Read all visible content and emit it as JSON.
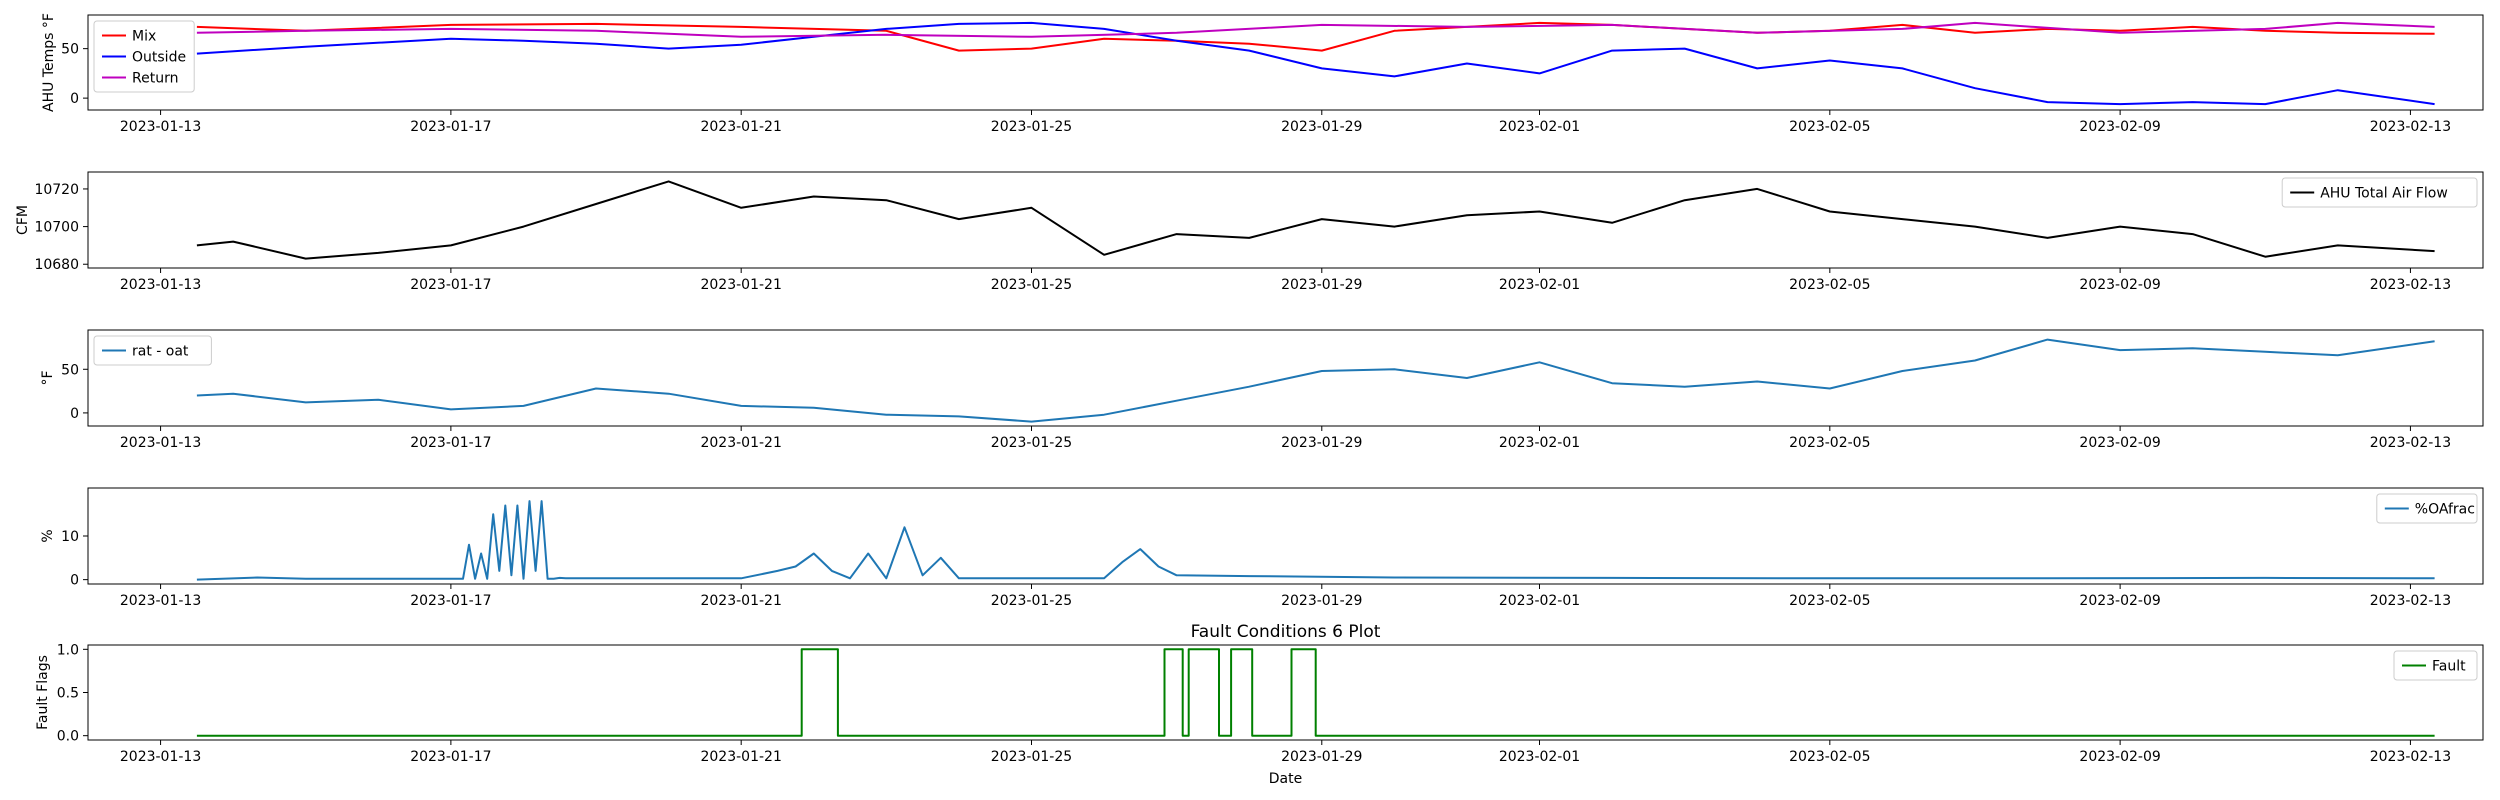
{
  "chart_data": [
    {
      "type": "line",
      "ylabel": "AHU Temps °F",
      "ylim": [
        -12,
        84
      ],
      "yticks": [
        0,
        50
      ],
      "legend": "upper-left",
      "series": [
        {
          "name": "Mix",
          "color": "#ff0000",
          "x": [
            "2023-01-13 12:00",
            "2023-01-15",
            "2023-01-17",
            "2023-01-19",
            "2023-01-21",
            "2023-01-23",
            "2023-01-24",
            "2023-01-25",
            "2023-01-26",
            "2023-01-27",
            "2023-01-28",
            "2023-01-29",
            "2023-01-30",
            "2023-02-01",
            "2023-02-02",
            "2023-02-03",
            "2023-02-04",
            "2023-02-05",
            "2023-02-06",
            "2023-02-07",
            "2023-02-08",
            "2023-02-09",
            "2023-02-10",
            "2023-02-11",
            "2023-02-12",
            "2023-02-13 08:00"
          ],
          "y": [
            72,
            68,
            74,
            75,
            72,
            68,
            48,
            50,
            60,
            58,
            55,
            48,
            68,
            76,
            74,
            70,
            66,
            68,
            74,
            66,
            70,
            68,
            72,
            68,
            66,
            65
          ]
        },
        {
          "name": "Outside",
          "color": "#0000ff",
          "x": [
            "2023-01-13 12:00",
            "2023-01-15",
            "2023-01-17",
            "2023-01-18",
            "2023-01-19",
            "2023-01-20",
            "2023-01-21",
            "2023-01-22",
            "2023-01-23",
            "2023-01-24",
            "2023-01-25",
            "2023-01-26",
            "2023-01-27",
            "2023-01-28",
            "2023-01-29",
            "2023-01-30",
            "2023-01-31",
            "2023-02-01",
            "2023-02-02",
            "2023-02-03",
            "2023-02-04",
            "2023-02-05",
            "2023-02-06",
            "2023-02-07",
            "2023-02-08",
            "2023-02-09",
            "2023-02-10",
            "2023-02-11",
            "2023-02-12",
            "2023-02-13 08:00"
          ],
          "y": [
            45,
            52,
            60,
            58,
            55,
            50,
            54,
            62,
            70,
            75,
            76,
            70,
            58,
            48,
            30,
            22,
            35,
            25,
            48,
            50,
            30,
            38,
            30,
            10,
            -4,
            -6,
            -4,
            -6,
            8,
            -6
          ]
        },
        {
          "name": "Return",
          "color": "#bf00bf",
          "x": [
            "2023-01-13 12:00",
            "2023-01-15",
            "2023-01-17",
            "2023-01-19",
            "2023-01-21",
            "2023-01-23",
            "2023-01-25",
            "2023-01-27",
            "2023-01-29",
            "2023-01-31",
            "2023-02-02",
            "2023-02-04",
            "2023-02-06",
            "2023-02-07",
            "2023-02-09",
            "2023-02-11",
            "2023-02-12",
            "2023-02-13 08:00"
          ],
          "y": [
            66,
            68,
            70,
            68,
            62,
            64,
            62,
            66,
            74,
            72,
            74,
            66,
            70,
            76,
            66,
            70,
            76,
            72
          ]
        }
      ]
    },
    {
      "type": "line",
      "ylabel": "CFM",
      "ylim": [
        10678,
        10729
      ],
      "yticks": [
        10680,
        10700,
        10720
      ],
      "legend": "upper-right",
      "series": [
        {
          "name": "AHU Total Air Flow",
          "color": "#000000",
          "x": [
            "2023-01-13 12:00",
            "2023-01-14",
            "2023-01-15",
            "2023-01-16",
            "2023-01-17",
            "2023-01-18",
            "2023-01-19",
            "2023-01-20",
            "2023-01-21",
            "2023-01-22",
            "2023-01-23",
            "2023-01-24",
            "2023-01-25",
            "2023-01-26",
            "2023-01-27",
            "2023-01-28",
            "2023-01-29",
            "2023-01-30",
            "2023-01-31",
            "2023-02-01",
            "2023-02-02",
            "2023-02-03",
            "2023-02-04",
            "2023-02-05",
            "2023-02-06",
            "2023-02-07",
            "2023-02-08",
            "2023-02-09",
            "2023-02-10",
            "2023-02-11",
            "2023-02-12",
            "2023-02-13 08:00"
          ],
          "y": [
            10690,
            10692,
            10683,
            10686,
            10690,
            10700,
            10712,
            10724,
            10710,
            10716,
            10714,
            10704,
            10710,
            10685,
            10696,
            10694,
            10704,
            10700,
            10706,
            10708,
            10702,
            10714,
            10720,
            10708,
            10704,
            10700,
            10694,
            10700,
            10696,
            10684,
            10690,
            10687
          ]
        }
      ]
    },
    {
      "type": "line",
      "ylabel": "°F",
      "ylim": [
        -15,
        95
      ],
      "yticks": [
        0,
        50
      ],
      "legend": "upper-left",
      "series": [
        {
          "name": "rat - oat",
          "color": "#1f77b4",
          "x": [
            "2023-01-13 12:00",
            "2023-01-14",
            "2023-01-15",
            "2023-01-16",
            "2023-01-17",
            "2023-01-18",
            "2023-01-19",
            "2023-01-20",
            "2023-01-21",
            "2023-01-22",
            "2023-01-23",
            "2023-01-24",
            "2023-01-25",
            "2023-01-26",
            "2023-01-27",
            "2023-01-28",
            "2023-01-29",
            "2023-01-30",
            "2023-01-31",
            "2023-02-01",
            "2023-02-02",
            "2023-02-03",
            "2023-02-04",
            "2023-02-05",
            "2023-02-06",
            "2023-02-07",
            "2023-02-08",
            "2023-02-09",
            "2023-02-10",
            "2023-02-11",
            "2023-02-12",
            "2023-02-13 08:00"
          ],
          "y": [
            20,
            22,
            12,
            15,
            4,
            8,
            28,
            22,
            8,
            6,
            -2,
            -4,
            -10,
            -2,
            14,
            30,
            48,
            50,
            40,
            58,
            34,
            30,
            36,
            28,
            48,
            60,
            84,
            72,
            74,
            70,
            66,
            82
          ]
        }
      ]
    },
    {
      "type": "line",
      "ylabel": "%",
      "ylim": [
        -1,
        21
      ],
      "yticks": [
        0,
        10
      ],
      "legend": "upper-right",
      "series": [
        {
          "name": "%OAfrac",
          "color": "#1f77b4",
          "x": [
            "2023-01-13 12:00",
            "2023-01-14 08:00",
            "2023-01-15",
            "2023-01-16",
            "2023-01-17 04:00",
            "2023-01-17 06:00",
            "2023-01-17 08:00",
            "2023-01-17 10:00",
            "2023-01-17 12:00",
            "2023-01-17 14:00",
            "2023-01-17 16:00",
            "2023-01-17 18:00",
            "2023-01-17 20:00",
            "2023-01-17 22:00",
            "2023-01-18 00:00",
            "2023-01-18 02:00",
            "2023-01-18 04:00",
            "2023-01-18 06:00",
            "2023-01-18 08:00",
            "2023-01-18 10:00",
            "2023-01-18 12:00",
            "2023-01-18 14:00",
            "2023-01-19",
            "2023-01-21",
            "2023-01-21 12:00",
            "2023-01-21 18:00",
            "2023-01-22",
            "2023-01-22 06:00",
            "2023-01-22 12:00",
            "2023-01-22 18:00",
            "2023-01-23",
            "2023-01-23 06:00",
            "2023-01-23 12:00",
            "2023-01-23 18:00",
            "2023-01-24",
            "2023-01-25",
            "2023-01-26 00:00",
            "2023-01-26 06:00",
            "2023-01-26 12:00",
            "2023-01-26 18:00",
            "2023-01-27",
            "2023-01-28",
            "2023-01-30",
            "2023-02-02",
            "2023-02-05",
            "2023-02-08",
            "2023-02-11",
            "2023-02-13 08:00"
          ],
          "y": [
            0,
            0.5,
            0.2,
            0.2,
            0.2,
            8,
            0.2,
            6,
            0.2,
            15,
            2,
            17,
            1,
            17,
            0.2,
            18,
            2,
            18,
            0.2,
            0.2,
            0.4,
            0.3,
            0.3,
            0.3,
            2,
            3,
            6,
            2,
            0.3,
            6,
            0.3,
            12,
            1,
            5,
            0.3,
            0.3,
            0.3,
            4,
            7,
            3,
            1,
            0.8,
            0.5,
            0.4,
            0.3,
            0.3,
            0.4,
            0.3
          ]
        }
      ]
    },
    {
      "type": "line",
      "title": "Fault Conditions 6 Plot",
      "xlabel": "Date",
      "ylabel": "Fault Flags",
      "ylim": [
        -0.05,
        1.05
      ],
      "yticks": [
        0.0,
        0.5,
        1.0
      ],
      "ytick_labels": [
        "0.0",
        "0.5",
        "1.0"
      ],
      "legend": "upper-right",
      "series": [
        {
          "name": "Fault",
          "color": "#008000",
          "x": [
            "2023-01-13 12:00",
            "2023-01-21 20:00",
            "2023-01-21 20:00",
            "2023-01-22 08:00",
            "2023-01-22 08:00",
            "2023-01-26 20:00",
            "2023-01-26 20:00",
            "2023-01-27 02:00",
            "2023-01-27 02:00",
            "2023-01-27 04:00",
            "2023-01-27 04:00",
            "2023-01-27 14:00",
            "2023-01-27 14:00",
            "2023-01-27 18:00",
            "2023-01-27 18:00",
            "2023-01-28 01:00",
            "2023-01-28 01:00",
            "2023-01-28 14:00",
            "2023-01-28 14:00",
            "2023-01-28 22:00",
            "2023-01-28 22:00",
            "2023-02-13 08:00"
          ],
          "y": [
            0,
            0,
            1,
            1,
            0,
            0,
            1,
            1,
            0,
            0,
            1,
            1,
            0,
            0,
            1,
            1,
            0,
            0,
            1,
            1,
            0,
            0
          ]
        }
      ]
    }
  ],
  "xaxis": {
    "range": [
      "2023-01-12",
      "2023-02-14"
    ],
    "ticks": [
      {
        "date": "2023-01-13",
        "label": "2023-01-13"
      },
      {
        "date": "2023-01-17",
        "label": "2023-01-17"
      },
      {
        "date": "2023-01-21",
        "label": "2023-01-21"
      },
      {
        "date": "2023-01-25",
        "label": "2023-01-25"
      },
      {
        "date": "2023-01-29",
        "label": "2023-01-29"
      },
      {
        "date": "2023-02-01",
        "label": "2023-02-01"
      },
      {
        "date": "2023-02-05",
        "label": "2023-02-05"
      },
      {
        "date": "2023-02-09",
        "label": "2023-02-09"
      },
      {
        "date": "2023-02-13",
        "label": "2023-02-13"
      }
    ]
  }
}
